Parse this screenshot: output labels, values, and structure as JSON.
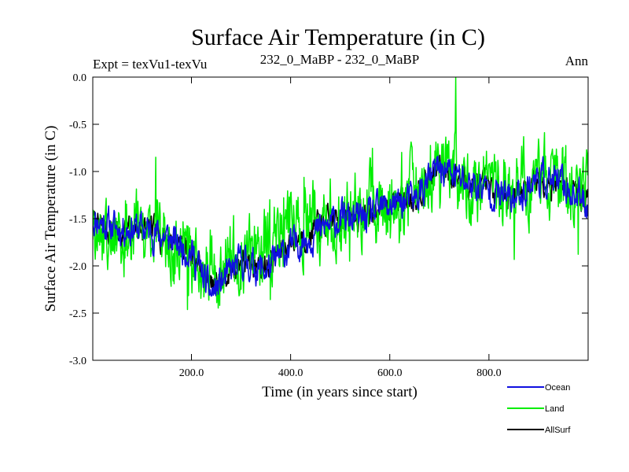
{
  "chart_data": {
    "type": "line",
    "title": "Surface Air Temperature (in C)",
    "subtitle_left": "Expt = texVu1-texVu",
    "subtitle_center": "232_0_MaBP - 232_0_MaBP",
    "subtitle_right": "Ann",
    "xlabel": "Time (in years since start)",
    "ylabel": "Surface Air Temperature (in C)",
    "xlim": [
      1,
      1000
    ],
    "ylim": [
      -3.0,
      0.0
    ],
    "x_ticks": [
      200,
      400,
      600,
      800
    ],
    "x_tick_labels": [
      "200.0",
      "400.0",
      "600.0",
      "800.0"
    ],
    "y_ticks": [
      0.0,
      -0.5,
      -1.0,
      -1.5,
      -2.0,
      -2.5,
      -3.0
    ],
    "y_tick_labels": [
      "0.0",
      "-0.5",
      "-1.0",
      "-1.5",
      "-2.0",
      "-2.5",
      "-3.0"
    ],
    "legend_position": "bottom-right",
    "x_knots": [
      0,
      50,
      100,
      150,
      200,
      240,
      300,
      350,
      400,
      450,
      500,
      550,
      600,
      650,
      700,
      750,
      800,
      850,
      900,
      950,
      1000
    ],
    "series": [
      {
        "name": "AllSurf",
        "color": "#000000",
        "amplitude": 0.12,
        "seed": 7,
        "knots": [
          -1.55,
          -1.65,
          -1.6,
          -1.7,
          -1.85,
          -2.25,
          -1.95,
          -2.0,
          -1.75,
          -1.6,
          -1.5,
          -1.45,
          -1.35,
          -1.25,
          -0.95,
          -1.1,
          -1.2,
          -1.25,
          -1.05,
          -1.15,
          -1.3
        ]
      },
      {
        "name": "Land",
        "color": "#00ee00",
        "amplitude": 0.32,
        "seed": 3,
        "knots": [
          -1.55,
          -1.75,
          -1.65,
          -1.75,
          -1.85,
          -2.1,
          -1.85,
          -1.8,
          -1.55,
          -1.5,
          -1.45,
          -1.35,
          -1.35,
          -1.2,
          -0.9,
          -1.05,
          -1.2,
          -1.2,
          -1.0,
          -1.1,
          -1.25
        ]
      },
      {
        "name": "Ocean",
        "color": "#1010e0",
        "amplitude": 0.14,
        "seed": 11,
        "knots": [
          -1.5,
          -1.6,
          -1.6,
          -1.7,
          -1.85,
          -2.3,
          -1.95,
          -2.05,
          -1.8,
          -1.65,
          -1.5,
          -1.5,
          -1.35,
          -1.3,
          -0.95,
          -1.1,
          -1.2,
          -1.3,
          -1.05,
          -1.15,
          -1.35
        ]
      }
    ]
  }
}
